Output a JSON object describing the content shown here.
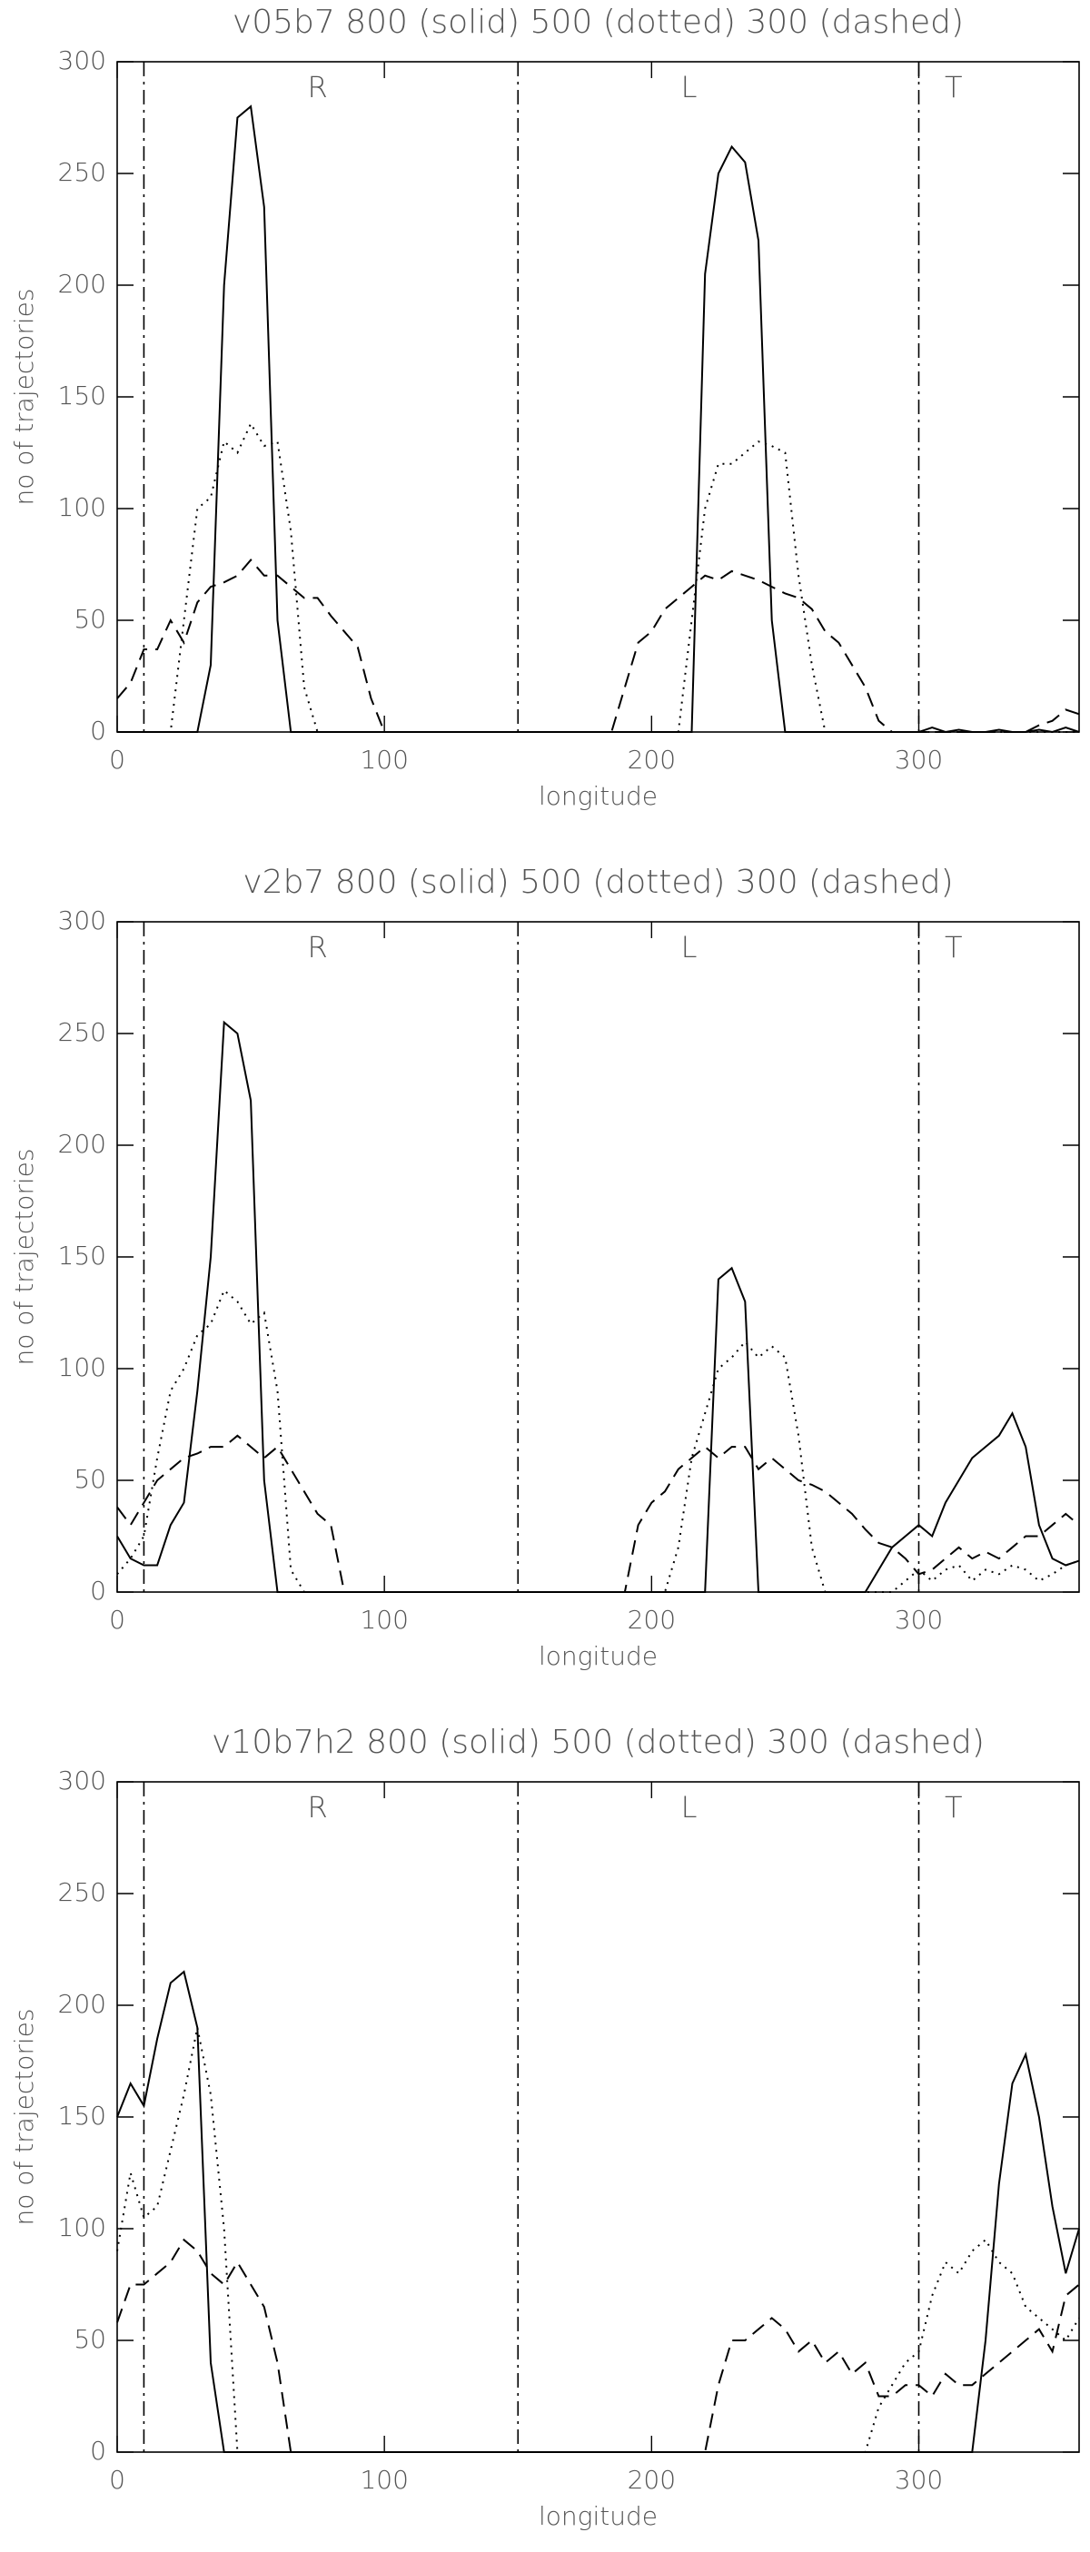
{
  "chart_data": [
    {
      "type": "line",
      "title": "v05b7 800 (solid) 500 (dotted) 300 (dashed)",
      "x_label": "longitude",
      "y_label": "no of trajectories",
      "xlim": [
        0,
        360
      ],
      "ylim": [
        0,
        300
      ],
      "xticks": [
        0,
        100,
        200,
        300
      ],
      "yticks": [
        0,
        50,
        100,
        150,
        200,
        250,
        300
      ],
      "vlines": [
        10,
        150,
        300
      ],
      "annotations": [
        {
          "text": "R",
          "x": 75
        },
        {
          "text": "L",
          "x": 214
        },
        {
          "text": "T",
          "x": 313
        }
      ],
      "x": [
        0,
        5,
        10,
        15,
        20,
        25,
        30,
        35,
        40,
        45,
        50,
        55,
        60,
        65,
        70,
        75,
        80,
        85,
        90,
        95,
        100,
        105,
        110,
        115,
        120,
        125,
        130,
        135,
        140,
        145,
        150,
        155,
        160,
        165,
        170,
        175,
        180,
        185,
        190,
        195,
        200,
        205,
        210,
        215,
        220,
        225,
        230,
        235,
        240,
        245,
        250,
        255,
        260,
        265,
        270,
        275,
        280,
        285,
        290,
        295,
        300,
        305,
        310,
        315,
        320,
        325,
        330,
        335,
        340,
        345,
        350,
        355,
        360
      ],
      "series": [
        {
          "style": "solid",
          "color": "#000000",
          "values": [
            0,
            0,
            0,
            0,
            0,
            0,
            0,
            30,
            200,
            275,
            280,
            235,
            50,
            0,
            0,
            0,
            0,
            0,
            0,
            0,
            0,
            0,
            0,
            0,
            0,
            0,
            0,
            0,
            0,
            0,
            0,
            0,
            0,
            0,
            0,
            0,
            0,
            0,
            0,
            0,
            0,
            0,
            0,
            0,
            205,
            250,
            262,
            255,
            220,
            50,
            0,
            0,
            0,
            0,
            0,
            0,
            0,
            0,
            0,
            0,
            0,
            2,
            0,
            1,
            0,
            0,
            1,
            0,
            0,
            1,
            0,
            2,
            0
          ]
        },
        {
          "style": "dotted",
          "color": "#000000",
          "values": [
            0,
            0,
            0,
            0,
            0,
            50,
            100,
            105,
            130,
            125,
            138,
            128,
            130,
            90,
            20,
            0,
            0,
            0,
            0,
            0,
            0,
            0,
            0,
            0,
            0,
            0,
            0,
            0,
            0,
            0,
            0,
            0,
            0,
            0,
            0,
            0,
            0,
            0,
            0,
            0,
            0,
            0,
            0,
            50,
            100,
            120,
            120,
            125,
            130,
            128,
            125,
            70,
            30,
            0,
            0,
            0,
            0,
            0,
            0,
            0,
            0,
            0,
            0,
            0,
            0,
            0,
            0,
            0,
            0,
            0,
            0,
            0,
            0
          ]
        },
        {
          "style": "dashed",
          "color": "#000000",
          "values": [
            15,
            22,
            37,
            37,
            50,
            40,
            58,
            65,
            67,
            70,
            77,
            70,
            70,
            65,
            60,
            60,
            52,
            45,
            38,
            15,
            0,
            0,
            0,
            0,
            0,
            0,
            0,
            0,
            0,
            0,
            0,
            0,
            0,
            0,
            0,
            0,
            0,
            0,
            20,
            40,
            45,
            55,
            60,
            65,
            70,
            68,
            72,
            70,
            68,
            65,
            62,
            60,
            55,
            45,
            40,
            30,
            20,
            5,
            0,
            0,
            0,
            0,
            0,
            0,
            0,
            0,
            0,
            0,
            0,
            3,
            5,
            10,
            8
          ]
        }
      ]
    },
    {
      "type": "line",
      "title": "v2b7 800 (solid) 500 (dotted) 300 (dashed)",
      "x_label": "longitude",
      "y_label": "no of trajectories",
      "xlim": [
        0,
        360
      ],
      "ylim": [
        0,
        300
      ],
      "xticks": [
        0,
        100,
        200,
        300
      ],
      "yticks": [
        0,
        50,
        100,
        150,
        200,
        250,
        300
      ],
      "vlines": [
        10,
        150,
        300
      ],
      "annotations": [
        {
          "text": "R",
          "x": 75
        },
        {
          "text": "L",
          "x": 214
        },
        {
          "text": "T",
          "x": 313
        }
      ],
      "x": [
        0,
        5,
        10,
        15,
        20,
        25,
        30,
        35,
        40,
        45,
        50,
        55,
        60,
        65,
        70,
        75,
        80,
        85,
        90,
        95,
        100,
        105,
        110,
        115,
        120,
        125,
        130,
        135,
        140,
        145,
        150,
        155,
        160,
        165,
        170,
        175,
        180,
        185,
        190,
        195,
        200,
        205,
        210,
        215,
        220,
        225,
        230,
        235,
        240,
        245,
        250,
        255,
        260,
        265,
        270,
        275,
        280,
        285,
        290,
        295,
        300,
        305,
        310,
        315,
        320,
        325,
        330,
        335,
        340,
        345,
        350,
        355,
        360
      ],
      "series": [
        {
          "style": "solid",
          "color": "#000000",
          "values": [
            25,
            15,
            12,
            12,
            30,
            40,
            90,
            150,
            255,
            250,
            220,
            50,
            0,
            0,
            0,
            0,
            0,
            0,
            0,
            0,
            0,
            0,
            0,
            0,
            0,
            0,
            0,
            0,
            0,
            0,
            0,
            0,
            0,
            0,
            0,
            0,
            0,
            0,
            0,
            0,
            0,
            0,
            0,
            0,
            0,
            140,
            145,
            130,
            0,
            0,
            0,
            0,
            0,
            0,
            0,
            0,
            0,
            10,
            20,
            25,
            30,
            25,
            40,
            50,
            60,
            65,
            70,
            80,
            65,
            30,
            15,
            12,
            14
          ]
        },
        {
          "style": "dotted",
          "color": "#000000",
          "values": [
            8,
            15,
            25,
            60,
            90,
            100,
            115,
            120,
            135,
            130,
            120,
            125,
            90,
            10,
            0,
            0,
            0,
            0,
            0,
            0,
            0,
            0,
            0,
            0,
            0,
            0,
            0,
            0,
            0,
            0,
            0,
            0,
            0,
            0,
            0,
            0,
            0,
            0,
            0,
            0,
            0,
            0,
            20,
            60,
            80,
            100,
            105,
            112,
            105,
            110,
            105,
            70,
            20,
            0,
            0,
            0,
            0,
            0,
            0,
            5,
            10,
            5,
            10,
            12,
            5,
            10,
            8,
            12,
            10,
            5,
            8,
            12,
            14
          ]
        },
        {
          "style": "dashed",
          "color": "#000000",
          "values": [
            38,
            30,
            40,
            50,
            55,
            60,
            62,
            65,
            65,
            70,
            65,
            60,
            65,
            55,
            45,
            35,
            30,
            0,
            0,
            0,
            0,
            0,
            0,
            0,
            0,
            0,
            0,
            0,
            0,
            0,
            0,
            0,
            0,
            0,
            0,
            0,
            0,
            0,
            0,
            30,
            40,
            45,
            55,
            60,
            65,
            60,
            65,
            65,
            55,
            60,
            55,
            50,
            48,
            45,
            40,
            35,
            28,
            22,
            20,
            15,
            8,
            10,
            15,
            20,
            15,
            18,
            15,
            20,
            25,
            25,
            30,
            35,
            30
          ]
        }
      ]
    },
    {
      "type": "line",
      "title": "v10b7h2 800 (solid) 500 (dotted) 300 (dashed)",
      "x_label": "longitude",
      "y_label": "no of trajectories",
      "xlim": [
        0,
        360
      ],
      "ylim": [
        0,
        300
      ],
      "xticks": [
        0,
        100,
        200,
        300
      ],
      "yticks": [
        0,
        50,
        100,
        150,
        200,
        250,
        300
      ],
      "vlines": [
        10,
        150,
        300
      ],
      "annotations": [
        {
          "text": "R",
          "x": 75
        },
        {
          "text": "L",
          "x": 214
        },
        {
          "text": "T",
          "x": 313
        }
      ],
      "x": [
        0,
        5,
        10,
        15,
        20,
        25,
        30,
        35,
        40,
        45,
        50,
        55,
        60,
        65,
        70,
        75,
        80,
        85,
        90,
        95,
        100,
        105,
        110,
        115,
        120,
        125,
        130,
        135,
        140,
        145,
        150,
        155,
        160,
        165,
        170,
        175,
        180,
        185,
        190,
        195,
        200,
        205,
        210,
        215,
        220,
        225,
        230,
        235,
        240,
        245,
        250,
        255,
        260,
        265,
        270,
        275,
        280,
        285,
        290,
        295,
        300,
        305,
        310,
        315,
        320,
        325,
        330,
        335,
        340,
        345,
        350,
        355,
        360
      ],
      "series": [
        {
          "style": "solid",
          "color": "#000000",
          "values": [
            150,
            165,
            155,
            185,
            210,
            215,
            190,
            40,
            0,
            0,
            0,
            0,
            0,
            0,
            0,
            0,
            0,
            0,
            0,
            0,
            0,
            0,
            0,
            0,
            0,
            0,
            0,
            0,
            0,
            0,
            0,
            0,
            0,
            0,
            0,
            0,
            0,
            0,
            0,
            0,
            0,
            0,
            0,
            0,
            0,
            0,
            0,
            0,
            0,
            0,
            0,
            0,
            0,
            0,
            0,
            0,
            0,
            0,
            0,
            0,
            0,
            0,
            0,
            0,
            0,
            50,
            120,
            165,
            178,
            150,
            110,
            80,
            100
          ]
        },
        {
          "style": "dotted",
          "color": "#000000",
          "values": [
            90,
            125,
            105,
            110,
            135,
            160,
            190,
            160,
            100,
            0,
            0,
            0,
            0,
            0,
            0,
            0,
            0,
            0,
            0,
            0,
            0,
            0,
            0,
            0,
            0,
            0,
            0,
            0,
            0,
            0,
            0,
            0,
            0,
            0,
            0,
            0,
            0,
            0,
            0,
            0,
            0,
            0,
            0,
            0,
            0,
            0,
            0,
            0,
            0,
            0,
            0,
            0,
            0,
            0,
            0,
            0,
            0,
            20,
            30,
            40,
            45,
            70,
            85,
            80,
            90,
            95,
            85,
            80,
            65,
            60,
            55,
            50,
            60
          ]
        },
        {
          "style": "dashed",
          "color": "#000000",
          "values": [
            58,
            75,
            75,
            80,
            85,
            95,
            90,
            80,
            75,
            85,
            75,
            65,
            40,
            0,
            0,
            0,
            0,
            0,
            0,
            0,
            0,
            0,
            0,
            0,
            0,
            0,
            0,
            0,
            0,
            0,
            0,
            0,
            0,
            0,
            0,
            0,
            0,
            0,
            0,
            0,
            0,
            0,
            0,
            0,
            0,
            30,
            50,
            50,
            55,
            60,
            55,
            45,
            50,
            40,
            45,
            35,
            40,
            25,
            25,
            30,
            30,
            25,
            35,
            30,
            30,
            35,
            40,
            45,
            50,
            55,
            45,
            70,
            75
          ]
        }
      ]
    }
  ]
}
